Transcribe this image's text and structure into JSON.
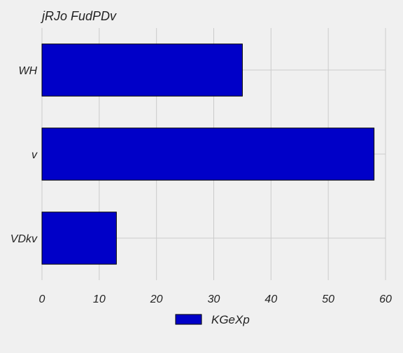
{
  "chart_data": {
    "type": "bar",
    "orientation": "horizontal",
    "title": "jRJo  FudPDv",
    "categories": [
      "WH",
      "v",
      "VDkv"
    ],
    "series": [
      {
        "name": "KGeXp",
        "values": [
          35,
          58,
          13
        ],
        "color": "#0000c8"
      }
    ],
    "xlim": [
      0,
      60
    ],
    "xticks": [
      0,
      10,
      20,
      30,
      40,
      50,
      60
    ],
    "grid": true,
    "legend": "bottom-center",
    "background": "#f0f0f0"
  }
}
